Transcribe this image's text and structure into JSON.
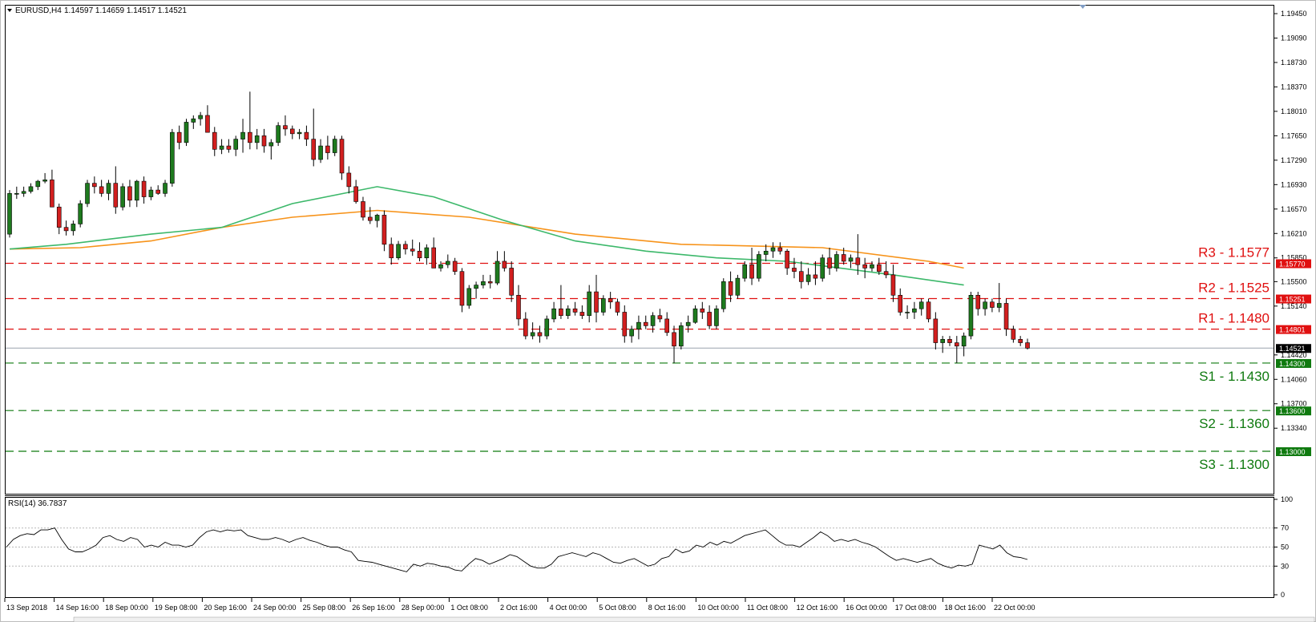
{
  "header": {
    "symbol": "EURUSD,H4",
    "ohlc": "1.14597 1.14659 1.14517 1.14521"
  },
  "rsi_panel": {
    "label": "RSI(14) 36.7837",
    "levels": [
      "100",
      "70",
      "50",
      "30",
      "0"
    ]
  },
  "price_axis": {
    "ticks": [
      "1.19450",
      "1.19090",
      "1.18730",
      "1.18370",
      "1.18010",
      "1.17650",
      "1.17290",
      "1.16930",
      "1.16570",
      "1.16210",
      "1.15850",
      "1.15500",
      "1.15140",
      "1.14420",
      "1.14060",
      "1.13700",
      "1.13340"
    ]
  },
  "levels": [
    {
      "text": "R3 - 1.1577",
      "tag": "1.15770",
      "price": 1.1577,
      "kind": "resistance"
    },
    {
      "text": "R2 - 1.1525",
      "tag": "1.15251",
      "price": 1.1525,
      "kind": "resistance"
    },
    {
      "text": "R1 - 1.1480",
      "tag": "1.14801",
      "price": 1.148,
      "kind": "resistance"
    },
    {
      "text": "S1 - 1.1430",
      "tag": "1.14300",
      "price": 1.143,
      "kind": "support"
    },
    {
      "text": "S2 - 1.1360",
      "tag": "1.13600",
      "price": 1.136,
      "kind": "support"
    },
    {
      "text": "S3 - 1.1300",
      "tag": "1.13000",
      "price": 1.13,
      "kind": "support"
    }
  ],
  "current_price": {
    "tag": "1.14521",
    "price": 1.14521
  },
  "time_axis": [
    "13 Sep 2018",
    "14 Sep 16:00",
    "18 Sep 00:00",
    "19 Sep 08:00",
    "20 Sep 16:00",
    "24 Sep 00:00",
    "25 Sep 08:00",
    "26 Sep 16:00",
    "28 Sep 00:00",
    "1 Oct 08:00",
    "2 Oct 16:00",
    "4 Oct 00:00",
    "5 Oct 08:00",
    "8 Oct 16:00",
    "10 Oct 00:00",
    "11 Oct 08:00",
    "12 Oct 16:00",
    "16 Oct 00:00",
    "17 Oct 08:00",
    "18 Oct 16:00",
    "22 Oct 00:00"
  ],
  "colors": {
    "bull": "#1e7a1e",
    "bear": "#d21f1f",
    "resistance": "#e01010",
    "support": "#0f7a0f",
    "ma_fast": "#3cb86a",
    "ma_slow": "#f7931a",
    "current": "#000000"
  },
  "chart_data": {
    "type": "candlestick",
    "timeframe": "H4",
    "price_range": [
      1.1295,
      1.196
    ],
    "candles_ohlc": [
      [
        1.162,
        1.1685,
        1.1615,
        1.168
      ],
      [
        1.168,
        1.169,
        1.1672,
        1.168
      ],
      [
        1.168,
        1.169,
        1.1675,
        1.1683
      ],
      [
        1.1683,
        1.1695,
        1.168,
        1.169
      ],
      [
        1.169,
        1.17,
        1.1685,
        1.1698
      ],
      [
        1.1698,
        1.171,
        1.1695,
        1.17
      ],
      [
        1.17,
        1.1715,
        1.168,
        1.166
      ],
      [
        1.166,
        1.1665,
        1.162,
        1.163
      ],
      [
        1.163,
        1.164,
        1.1618,
        1.1625
      ],
      [
        1.1625,
        1.164,
        1.1618,
        1.1635
      ],
      [
        1.1635,
        1.167,
        1.163,
        1.1665
      ],
      [
        1.1665,
        1.17,
        1.166,
        1.1695
      ],
      [
        1.1695,
        1.1705,
        1.168,
        1.169
      ],
      [
        1.169,
        1.17,
        1.1675,
        1.168
      ],
      [
        1.168,
        1.17,
        1.167,
        1.1695
      ],
      [
        1.1695,
        1.172,
        1.165,
        1.166
      ],
      [
        1.166,
        1.1695,
        1.1655,
        1.169
      ],
      [
        1.169,
        1.17,
        1.166,
        1.167
      ],
      [
        1.167,
        1.17,
        1.166,
        1.1698
      ],
      [
        1.1698,
        1.1705,
        1.1665,
        1.1675
      ],
      [
        1.1675,
        1.169,
        1.167,
        1.1685
      ],
      [
        1.1685,
        1.1692,
        1.1678,
        1.168
      ],
      [
        1.168,
        1.17,
        1.1675,
        1.1695
      ],
      [
        1.1695,
        1.1775,
        1.169,
        1.177
      ],
      [
        1.177,
        1.178,
        1.1745,
        1.1755
      ],
      [
        1.1755,
        1.179,
        1.175,
        1.1785
      ],
      [
        1.1785,
        1.1795,
        1.1775,
        1.179
      ],
      [
        1.179,
        1.18,
        1.178,
        1.1795
      ],
      [
        1.1795,
        1.181,
        1.1785,
        1.177
      ],
      [
        1.177,
        1.1778,
        1.1735,
        1.1745
      ],
      [
        1.1745,
        1.176,
        1.1738,
        1.175
      ],
      [
        1.175,
        1.176,
        1.174,
        1.1745
      ],
      [
        1.1745,
        1.1765,
        1.1735,
        1.176
      ],
      [
        1.176,
        1.179,
        1.174,
        1.177
      ],
      [
        1.177,
        1.183,
        1.1745,
        1.1755
      ],
      [
        1.1755,
        1.1775,
        1.1745,
        1.1765
      ],
      [
        1.1765,
        1.1775,
        1.174,
        1.175
      ],
      [
        1.175,
        1.176,
        1.173,
        1.1755
      ],
      [
        1.1755,
        1.1785,
        1.175,
        1.178
      ],
      [
        1.178,
        1.1795,
        1.1765,
        1.1775
      ],
      [
        1.1775,
        1.178,
        1.176,
        1.1768
      ],
      [
        1.1768,
        1.1775,
        1.176,
        1.177
      ],
      [
        1.177,
        1.178,
        1.175,
        1.176
      ],
      [
        1.176,
        1.1805,
        1.172,
        1.173
      ],
      [
        1.173,
        1.176,
        1.1725,
        1.175
      ],
      [
        1.175,
        1.1765,
        1.173,
        1.174
      ],
      [
        1.174,
        1.1765,
        1.1735,
        1.176
      ],
      [
        1.176,
        1.1765,
        1.17,
        1.171
      ],
      [
        1.171,
        1.172,
        1.168,
        1.169
      ],
      [
        1.169,
        1.17,
        1.1665,
        1.1668
      ],
      [
        1.1668,
        1.1675,
        1.164,
        1.1645
      ],
      [
        1.1645,
        1.166,
        1.1635,
        1.164
      ],
      [
        1.164,
        1.165,
        1.163,
        1.1648
      ],
      [
        1.1648,
        1.1655,
        1.1595,
        1.1605
      ],
      [
        1.1605,
        1.1615,
        1.1575,
        1.1585
      ],
      [
        1.1585,
        1.161,
        1.1582,
        1.1605
      ],
      [
        1.1605,
        1.161,
        1.159,
        1.1598
      ],
      [
        1.1598,
        1.1612,
        1.1588,
        1.1595
      ],
      [
        1.1595,
        1.1608,
        1.158,
        1.1585
      ],
      [
        1.1585,
        1.1605,
        1.1575,
        1.16
      ],
      [
        1.16,
        1.1615,
        1.157,
        1.157
      ],
      [
        1.157,
        1.158,
        1.1565,
        1.1575
      ],
      [
        1.1575,
        1.159,
        1.157,
        1.158
      ],
      [
        1.158,
        1.1585,
        1.156,
        1.1565
      ],
      [
        1.1565,
        1.157,
        1.1505,
        1.1515
      ],
      [
        1.1515,
        1.1545,
        1.151,
        1.154
      ],
      [
        1.154,
        1.155,
        1.1525,
        1.1545
      ],
      [
        1.1545,
        1.156,
        1.154,
        1.155
      ],
      [
        1.155,
        1.156,
        1.154,
        1.1548
      ],
      [
        1.1548,
        1.1595,
        1.1545,
        1.158
      ],
      [
        1.158,
        1.1595,
        1.1565,
        1.157
      ],
      [
        1.157,
        1.158,
        1.152,
        1.153
      ],
      [
        1.153,
        1.1545,
        1.1485,
        1.1495
      ],
      [
        1.1495,
        1.1505,
        1.1465,
        1.147
      ],
      [
        1.147,
        1.149,
        1.1465,
        1.1475
      ],
      [
        1.1475,
        1.1485,
        1.146,
        1.147
      ],
      [
        1.147,
        1.15,
        1.1465,
        1.1495
      ],
      [
        1.1495,
        1.152,
        1.149,
        1.151
      ],
      [
        1.151,
        1.1545,
        1.1495,
        1.15
      ],
      [
        1.15,
        1.1515,
        1.1495,
        1.151
      ],
      [
        1.151,
        1.152,
        1.15,
        1.1505
      ],
      [
        1.1505,
        1.1515,
        1.1495,
        1.15
      ],
      [
        1.15,
        1.1545,
        1.149,
        1.1535
      ],
      [
        1.1535,
        1.156,
        1.149,
        1.1505
      ],
      [
        1.1505,
        1.153,
        1.15,
        1.1525
      ],
      [
        1.1525,
        1.1535,
        1.151,
        1.152
      ],
      [
        1.152,
        1.1525,
        1.15,
        1.1505
      ],
      [
        1.1505,
        1.1515,
        1.146,
        1.147
      ],
      [
        1.147,
        1.1485,
        1.146,
        1.148
      ],
      [
        1.148,
        1.15,
        1.1465,
        1.149
      ],
      [
        1.149,
        1.15,
        1.148,
        1.1485
      ],
      [
        1.1485,
        1.1505,
        1.1475,
        1.15
      ],
      [
        1.15,
        1.151,
        1.149,
        1.1495
      ],
      [
        1.1495,
        1.1505,
        1.147,
        1.1475
      ],
      [
        1.1475,
        1.1485,
        1.143,
        1.1455
      ],
      [
        1.1455,
        1.149,
        1.145,
        1.1485
      ],
      [
        1.1485,
        1.15,
        1.1475,
        1.149
      ],
      [
        1.149,
        1.1515,
        1.1488,
        1.151
      ],
      [
        1.151,
        1.152,
        1.1495,
        1.1505
      ],
      [
        1.1505,
        1.1515,
        1.148,
        1.1485
      ],
      [
        1.1485,
        1.1515,
        1.148,
        1.151
      ],
      [
        1.151,
        1.1555,
        1.1505,
        1.155
      ],
      [
        1.155,
        1.1565,
        1.152,
        1.153
      ],
      [
        1.153,
        1.156,
        1.1525,
        1.1555
      ],
      [
        1.1555,
        1.158,
        1.155,
        1.1575
      ],
      [
        1.1575,
        1.16,
        1.1545,
        1.1555
      ],
      [
        1.1555,
        1.1595,
        1.155,
        1.159
      ],
      [
        1.159,
        1.1605,
        1.158,
        1.1595
      ],
      [
        1.1595,
        1.1608,
        1.1585,
        1.16
      ],
      [
        1.16,
        1.1608,
        1.159,
        1.1595
      ],
      [
        1.1595,
        1.1598,
        1.156,
        1.157
      ],
      [
        1.157,
        1.1585,
        1.1555,
        1.1565
      ],
      [
        1.1565,
        1.158,
        1.154,
        1.155
      ],
      [
        1.155,
        1.157,
        1.1545,
        1.156
      ],
      [
        1.156,
        1.158,
        1.1545,
        1.1555
      ],
      [
        1.1555,
        1.159,
        1.155,
        1.1585
      ],
      [
        1.1585,
        1.16,
        1.156,
        1.157
      ],
      [
        1.157,
        1.1595,
        1.1565,
        1.159
      ],
      [
        1.159,
        1.16,
        1.1575,
        1.158
      ],
      [
        1.158,
        1.159,
        1.157,
        1.1585
      ],
      [
        1.1585,
        1.162,
        1.156,
        1.1575
      ],
      [
        1.1575,
        1.1585,
        1.1555,
        1.157
      ],
      [
        1.157,
        1.158,
        1.1565,
        1.1575
      ],
      [
        1.1575,
        1.1585,
        1.156,
        1.1565
      ],
      [
        1.1565,
        1.158,
        1.1555,
        1.156
      ],
      [
        1.156,
        1.1575,
        1.152,
        1.153
      ],
      [
        1.153,
        1.154,
        1.15,
        1.1505
      ],
      [
        1.1505,
        1.1515,
        1.1495,
        1.1505
      ],
      [
        1.1505,
        1.152,
        1.1495,
        1.151
      ],
      [
        1.151,
        1.1525,
        1.15,
        1.152
      ],
      [
        1.152,
        1.1525,
        1.149,
        1.1495
      ],
      [
        1.1495,
        1.1505,
        1.145,
        1.146
      ],
      [
        1.146,
        1.147,
        1.1445,
        1.1465
      ],
      [
        1.1465,
        1.147,
        1.1455,
        1.146
      ],
      [
        1.146,
        1.147,
        1.143,
        1.1455
      ],
      [
        1.1455,
        1.1475,
        1.144,
        1.147
      ],
      [
        1.147,
        1.1535,
        1.1465,
        1.153
      ],
      [
        1.153,
        1.1535,
        1.15,
        1.151
      ],
      [
        1.151,
        1.1525,
        1.15,
        1.152
      ],
      [
        1.152,
        1.1525,
        1.1505,
        1.1512
      ],
      [
        1.1512,
        1.1548,
        1.1505,
        1.1518
      ],
      [
        1.1518,
        1.1525,
        1.147,
        1.148
      ],
      [
        1.148,
        1.1485,
        1.146,
        1.1465
      ],
      [
        1.1465,
        1.147,
        1.1455,
        1.146
      ],
      [
        1.146,
        1.1466,
        1.145,
        1.1452
      ]
    ],
    "ma_fast": [
      [
        0,
        1.1598
      ],
      [
        8,
        1.1605
      ],
      [
        20,
        1.162
      ],
      [
        30,
        1.163
      ],
      [
        40,
        1.1665
      ],
      [
        52,
        1.169
      ],
      [
        60,
        1.1675
      ],
      [
        70,
        1.164
      ],
      [
        80,
        1.161
      ],
      [
        90,
        1.1595
      ],
      [
        100,
        1.1585
      ],
      [
        110,
        1.158
      ],
      [
        125,
        1.156
      ],
      [
        135,
        1.1545
      ]
    ],
    "ma_slow": [
      [
        0,
        1.1598
      ],
      [
        10,
        1.16
      ],
      [
        20,
        1.161
      ],
      [
        30,
        1.163
      ],
      [
        40,
        1.1645
      ],
      [
        52,
        1.1655
      ],
      [
        65,
        1.1645
      ],
      [
        80,
        1.162
      ],
      [
        95,
        1.1605
      ],
      [
        115,
        1.16
      ],
      [
        130,
        1.158
      ],
      [
        135,
        1.157
      ]
    ],
    "rsi_series": [
      50,
      58,
      62,
      64,
      63,
      68,
      68,
      70,
      58,
      48,
      45,
      45,
      48,
      52,
      60,
      62,
      58,
      56,
      60,
      58,
      50,
      52,
      50,
      55,
      52,
      52,
      50,
      52,
      60,
      66,
      68,
      66,
      68,
      67,
      68,
      62,
      60,
      58,
      58,
      60,
      58,
      55,
      58,
      60,
      57,
      55,
      52,
      50,
      50,
      47,
      45,
      36,
      35,
      34,
      32,
      30,
      28,
      26,
      24,
      32,
      30,
      33,
      32,
      30,
      29,
      26,
      25,
      32,
      38,
      36,
      32,
      35,
      38,
      42,
      40,
      35,
      30,
      28,
      28,
      32,
      40,
      42,
      44,
      42,
      40,
      44,
      42,
      38,
      34,
      33,
      36,
      38,
      34,
      30,
      32,
      38,
      40,
      48,
      44,
      46,
      52,
      50,
      55,
      52,
      56,
      54,
      58,
      62,
      64,
      66,
      68,
      62,
      56,
      52,
      52,
      50,
      55,
      60,
      66,
      62,
      56,
      58,
      56,
      58,
      55,
      53,
      50,
      45,
      40,
      36,
      38,
      36,
      34,
      36,
      38,
      33,
      30,
      28,
      31,
      30,
      32,
      52,
      50,
      48,
      52,
      44,
      40,
      39,
      37
    ]
  }
}
